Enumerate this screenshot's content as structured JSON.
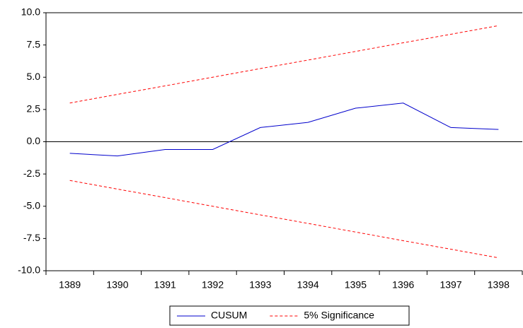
{
  "chart_data": {
    "type": "line",
    "categories": [
      "1389",
      "1390",
      "1391",
      "1392",
      "1393",
      "1394",
      "1395",
      "1396",
      "1397",
      "1398"
    ],
    "series": [
      {
        "name": "CUSUM",
        "color": "#0000cc",
        "dash": false,
        "values": [
          -0.9,
          -1.1,
          -0.6,
          -0.6,
          1.1,
          1.5,
          2.6,
          3.0,
          1.1,
          0.95
        ]
      },
      {
        "name": "5% Significance",
        "color": "#ff0000",
        "dash": true,
        "values": [
          3.0,
          3.67,
          4.33,
          5.0,
          5.67,
          6.33,
          7.0,
          7.67,
          8.33,
          9.0
        ],
        "lower": [
          -3.0,
          -3.67,
          -4.33,
          -5.0,
          -5.67,
          -6.33,
          -7.0,
          -7.67,
          -8.33,
          -9.0
        ]
      }
    ],
    "ylim": [
      -10,
      10
    ],
    "yticks": [
      {
        "value": 10,
        "label": "10.0"
      },
      7.5,
      {
        "value": 5,
        "label": "5.0"
      },
      2.5,
      {
        "value": 0,
        "label": "0.0"
      },
      -2.5,
      {
        "value": -5,
        "label": "-5.0"
      },
      -7.5,
      {
        "value": -10,
        "label": "-10.0"
      }
    ],
    "grid": false
  }
}
